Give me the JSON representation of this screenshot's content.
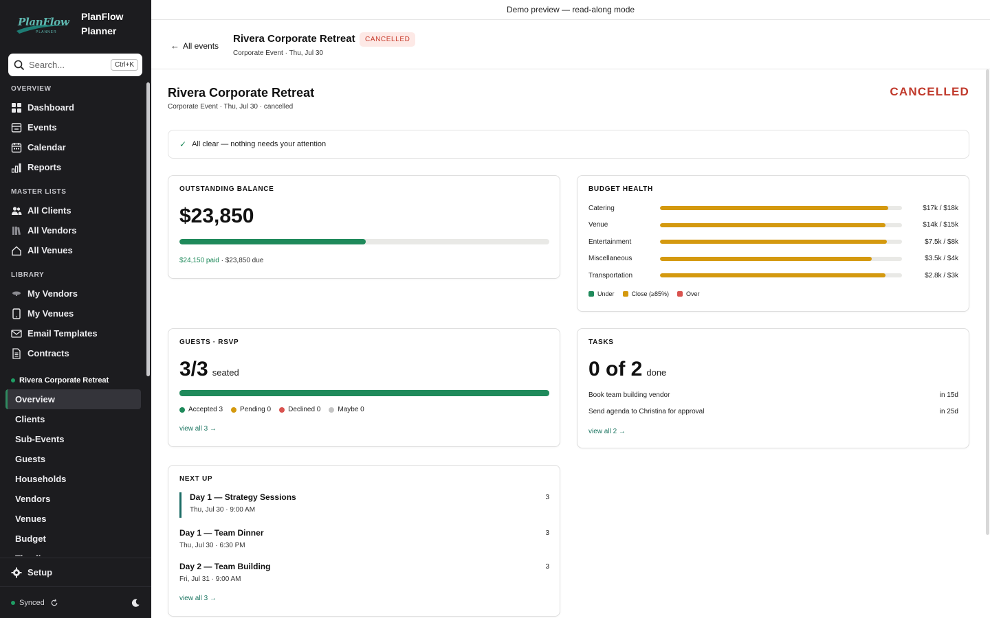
{
  "banner": "Demo preview — read-along mode",
  "brand": {
    "logo_text": "PlanFlow",
    "logo_sub": "PLANNER",
    "name_line1": "PlanFlow",
    "name_line2": "Planner"
  },
  "search": {
    "placeholder": "Search...",
    "shortcut": "Ctrl+K"
  },
  "sidebar": {
    "overview_title": "OVERVIEW",
    "overview_items": [
      {
        "label": "Dashboard",
        "icon": "grid-icon"
      },
      {
        "label": "Events",
        "icon": "inbox-icon"
      },
      {
        "label": "Calendar",
        "icon": "calendar-icon"
      },
      {
        "label": "Reports",
        "icon": "bar-chart-icon"
      }
    ],
    "master_title": "MASTER LISTS",
    "master_items": [
      {
        "label": "All Clients",
        "icon": "users-icon"
      },
      {
        "label": "All Vendors",
        "icon": "books-icon"
      },
      {
        "label": "All Venues",
        "icon": "home-icon"
      }
    ],
    "library_title": "LIBRARY",
    "library_items": [
      {
        "label": "My Vendors",
        "icon": "tag-icon"
      },
      {
        "label": "My Venues",
        "icon": "tablet-icon"
      },
      {
        "label": "Email Templates",
        "icon": "mail-icon"
      },
      {
        "label": "Contracts",
        "icon": "document-icon"
      }
    ],
    "event_name": "Rivera Corporate Retreat",
    "event_items": [
      "Overview",
      "Clients",
      "Sub-Events",
      "Guests",
      "Households",
      "Vendors",
      "Venues",
      "Budget",
      "Timeline"
    ],
    "active_event_item": "Overview",
    "setup_label": "Setup",
    "sync_status": "Synced"
  },
  "header": {
    "back_label": "All events",
    "title": "Rivera Corporate Retreat",
    "badge": "CANCELLED",
    "subtitle": "Corporate Event · Thu, Jul 30"
  },
  "page": {
    "title": "Rivera Corporate Retreat",
    "subtitle": "Corporate Event · Thu, Jul 30 · cancelled",
    "status": "CANCELLED",
    "alert": "All clear — nothing needs your attention"
  },
  "balance": {
    "title": "OUTSTANDING BALANCE",
    "amount": "$23,850",
    "paid_fraction": 0.503,
    "paid_text": "$24,150 paid",
    "due_text": " · $23,850 due"
  },
  "budget_health": {
    "title": "BUDGET HEALTH",
    "rows": [
      {
        "label": "Catering",
        "amount": "$17k / $18k",
        "fraction": 0.944
      },
      {
        "label": "Venue",
        "amount": "$14k / $15k",
        "fraction": 0.933
      },
      {
        "label": "Entertainment",
        "amount": "$7.5k / $8k",
        "fraction": 0.9375
      },
      {
        "label": "Miscellaneous",
        "amount": "$3.5k / $4k",
        "fraction": 0.875
      },
      {
        "label": "Transportation",
        "amount": "$2.8k / $3k",
        "fraction": 0.933
      }
    ],
    "legend": [
      {
        "label": "Under",
        "color": "#1f8a5b"
      },
      {
        "label": "Close (≥85%)",
        "color": "#d4990f"
      },
      {
        "label": "Over",
        "color": "#d9534f"
      }
    ]
  },
  "guests": {
    "title": "GUESTS · RSVP",
    "count": "3/3",
    "unit": "seated",
    "seated_fraction": 1.0,
    "rsvp": [
      {
        "label": "Accepted 3",
        "color": "#1f8a5b"
      },
      {
        "label": "Pending 0",
        "color": "#d4990f"
      },
      {
        "label": "Declined 0",
        "color": "#d9534f"
      },
      {
        "label": "Maybe 0",
        "color": "#c4c4c4"
      }
    ],
    "link": "view all 3 →"
  },
  "tasks": {
    "title": "TASKS",
    "count": "0 of 2",
    "unit": "done",
    "items": [
      {
        "label": "Book team building vendor",
        "due": "in 15d"
      },
      {
        "label": "Send agenda to Christina for approval",
        "due": "in 25d"
      }
    ],
    "link": "view all 2 →"
  },
  "next_up": {
    "title": "NEXT UP",
    "items": [
      {
        "name": "Day 1 — Strategy Sessions",
        "time": "Thu, Jul 30 · 9:00 AM",
        "count": "3"
      },
      {
        "name": "Day 1 — Team Dinner",
        "time": "Thu, Jul 30 · 6:30 PM",
        "count": "3"
      },
      {
        "name": "Day 2 — Team Building",
        "time": "Fri, Jul 31 · 9:00 AM",
        "count": "3"
      }
    ],
    "link": "view all 3 →"
  }
}
